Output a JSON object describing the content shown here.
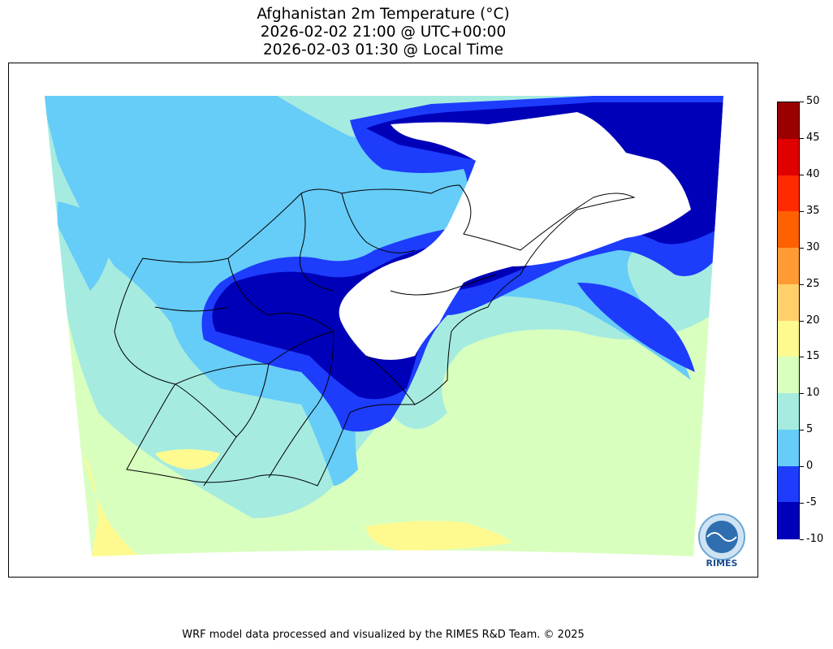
{
  "title": {
    "line1": "Afghanistan 2m Temperature (°C)",
    "line2": "2026-02-02 21:00 @ UTC+00:00",
    "line3": "2026-02-03 01:30 @ Local Time"
  },
  "colorbar": {
    "ticks": [
      "50",
      "45",
      "40",
      "35",
      "30",
      "25",
      "20",
      "15",
      "10",
      "5",
      "0",
      "-5",
      "-10"
    ],
    "bins": [
      {
        "range": "45 to 50",
        "color": "#9a0000"
      },
      {
        "range": "40 to 45",
        "color": "#e00000"
      },
      {
        "range": "35 to 40",
        "color": "#ff2a00"
      },
      {
        "range": "30 to 35",
        "color": "#ff6000"
      },
      {
        "range": "25 to 30",
        "color": "#ff9a35"
      },
      {
        "range": "20 to 25",
        "color": "#ffd06a"
      },
      {
        "range": "15 to 20",
        "color": "#fffa90"
      },
      {
        "range": "10 to 15",
        "color": "#d9ffbf"
      },
      {
        "range": "5 to 10",
        "color": "#a6ebe0"
      },
      {
        "range": "0 to 5",
        "color": "#66ccf8"
      },
      {
        "range": "-5 to 0",
        "color": "#1d3cfc"
      },
      {
        "range": "-10 to -5",
        "color": "#0000b8"
      }
    ]
  },
  "colors": {
    "out_of_range": "#ffffff",
    "border_line": "#000000"
  },
  "footer": "WRF model data processed and visualized by the RIMES R&D Team. © 2025",
  "logo": {
    "text": "RIMES",
    "ring_text": "Regional Integrated Multi-Hazard Early Warning System"
  }
}
